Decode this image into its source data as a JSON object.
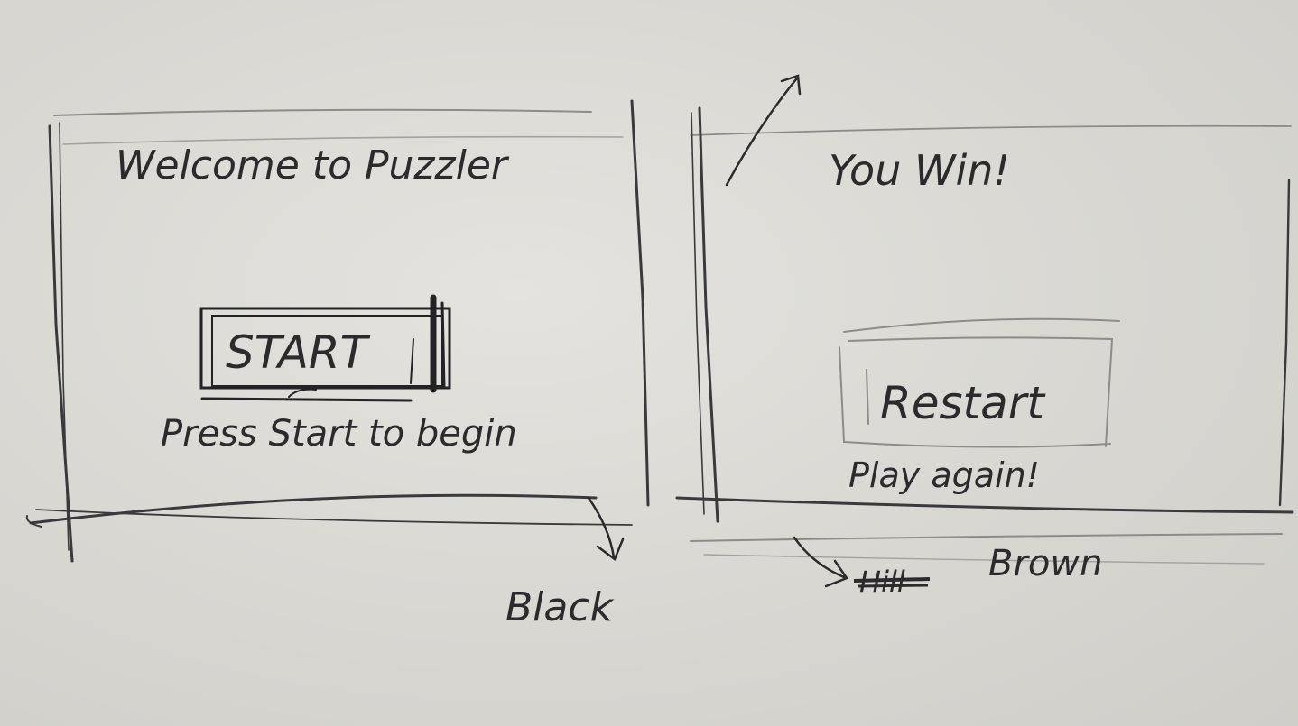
{
  "left_screen": {
    "title": "Welcome to Puzzler",
    "start_button_label": "START",
    "hint": "Press Start to begin",
    "background_note": "Black"
  },
  "right_screen": {
    "title": "You Win!",
    "restart_button_label": "Restart",
    "hint": "Play again!",
    "crossed_note": "Hill",
    "background_note": "Brown"
  },
  "colors": {
    "paper": "#d9d8d4",
    "pencil": "#2b2b2e",
    "pencil_light": "#8d8c8a"
  }
}
